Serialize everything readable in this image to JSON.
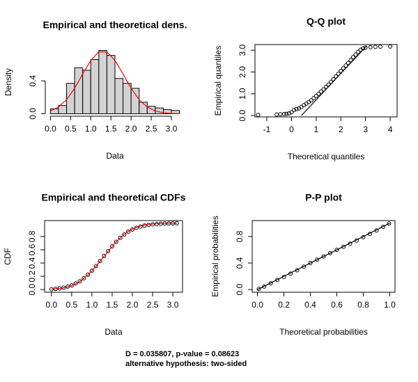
{
  "chart_data": [
    {
      "type": "histogram",
      "title": "Empirical and theoretical dens.",
      "xlabel": "Data",
      "ylabel": "Density",
      "bins": [
        0,
        0.2,
        0.4,
        0.6,
        0.8,
        1.0,
        1.2,
        1.4,
        1.6,
        1.8,
        2.0,
        2.2,
        2.4,
        2.6,
        2.8,
        3.0,
        3.2
      ],
      "values": [
        0.06,
        0.1,
        0.37,
        0.56,
        0.53,
        0.66,
        0.77,
        0.71,
        0.43,
        0.37,
        0.31,
        0.14,
        0.09,
        0.07,
        0.05,
        0.04
      ],
      "color": "#d3d3d3",
      "box": false,
      "xlim": [
        -0.128,
        3.328
      ],
      "ylim": [
        -0.03,
        0.8
      ],
      "xticks": [
        {
          "value": 0,
          "label": "0.0"
        },
        0.5,
        {
          "value": 1,
          "label": "1.0"
        },
        1.5,
        {
          "value": 2,
          "label": "2.0"
        },
        2.5,
        {
          "value": 3,
          "label": "3.0"
        }
      ],
      "yticks": [
        {
          "value": 0,
          "label": "0.0"
        },
        0.4
      ],
      "series": [
        {
          "style": "line",
          "color": "#ff0000",
          "x": [
            0,
            0.2,
            0.4,
            0.6,
            0.8,
            1.0,
            1.2,
            1.4,
            1.6,
            1.8,
            2.0,
            2.2,
            2.4,
            2.6,
            2.8,
            3.0,
            3.2
          ],
          "values": [
            0.034,
            0.082,
            0.171,
            0.31,
            0.483,
            0.649,
            0.753,
            0.753,
            0.649,
            0.483,
            0.31,
            0.171,
            0.082,
            0.034,
            0.012,
            0.004,
            0.001
          ]
        }
      ]
    },
    {
      "type": "scatter",
      "title": "Q-Q plot",
      "xlabel": "Theoretical quantiles",
      "ylabel": "Empirical quantiles",
      "box": true,
      "xlim": [
        -1.48,
        4.28
      ],
      "ylim": [
        -0.06,
        3.26
      ],
      "xticks": [
        -1,
        0,
        1,
        2,
        3,
        4
      ],
      "yticks": [
        {
          "value": 0,
          "label": "0.0"
        },
        {
          "value": 1,
          "label": "1.0"
        },
        {
          "value": 2,
          "label": "2.0"
        },
        {
          "value": 3,
          "label": "3.0"
        }
      ],
      "series": [
        {
          "style": "points",
          "color": "#000000",
          "x": [
            -1.35,
            -0.6,
            -0.45,
            -0.3,
            -0.2,
            -0.1,
            0.0,
            0.1,
            0.2,
            0.3,
            0.4,
            0.5,
            0.6,
            0.7,
            0.8,
            0.9,
            1.0,
            1.1,
            1.2,
            1.3,
            1.4,
            1.5,
            1.6,
            1.7,
            1.8,
            1.9,
            2.0,
            2.1,
            2.2,
            2.3,
            2.4,
            2.5,
            2.6,
            2.7,
            2.8,
            2.9,
            3.0,
            3.2,
            3.4,
            3.6,
            4.0
          ],
          "values": [
            0.03,
            0.05,
            0.06,
            0.07,
            0.08,
            0.1,
            0.15,
            0.25,
            0.3,
            0.33,
            0.4,
            0.48,
            0.55,
            0.62,
            0.7,
            0.8,
            0.9,
            1.0,
            1.1,
            1.2,
            1.32,
            1.42,
            1.55,
            1.67,
            1.8,
            1.92,
            2.05,
            2.17,
            2.3,
            2.42,
            2.55,
            2.68,
            2.8,
            2.92,
            3.02,
            3.08,
            3.12,
            3.14,
            3.15,
            3.16,
            3.17
          ]
        },
        {
          "style": "line",
          "color": "#000000",
          "x": [
            0.4,
            3.05
          ],
          "values": [
            0,
            3.2
          ]
        }
      ]
    },
    {
      "type": "scatter",
      "title": "Empirical and theoretical CDFs",
      "xlabel": "Data",
      "ylabel": "CDF",
      "box": true,
      "xlim": [
        -0.17,
        3.24
      ],
      "ylim": [
        -0.04,
        1.04
      ],
      "xticks": [
        {
          "value": 0,
          "label": "0.0"
        },
        0.5,
        {
          "value": 1,
          "label": "1.0"
        },
        1.5,
        {
          "value": 2,
          "label": "2.0"
        },
        2.5,
        {
          "value": 3,
          "label": "3.0"
        }
      ],
      "yticks": [
        {
          "value": 0,
          "label": "0.0"
        },
        0.2,
        0.4,
        0.6,
        0.8
      ],
      "series": [
        {
          "style": "points",
          "color": "#000000",
          "x": [
            0,
            0.1,
            0.2,
            0.3,
            0.4,
            0.5,
            0.6,
            0.7,
            0.8,
            0.9,
            1.0,
            1.1,
            1.2,
            1.3,
            1.4,
            1.5,
            1.6,
            1.7,
            1.8,
            1.9,
            2.0,
            2.1,
            2.2,
            2.3,
            2.4,
            2.5,
            2.6,
            2.7,
            2.8,
            2.9,
            3.0,
            3.1
          ],
          "values": [
            0.005,
            0.01,
            0.018,
            0.028,
            0.045,
            0.064,
            0.092,
            0.125,
            0.17,
            0.225,
            0.285,
            0.355,
            0.43,
            0.505,
            0.58,
            0.652,
            0.72,
            0.78,
            0.83,
            0.873,
            0.905,
            0.93,
            0.95,
            0.965,
            0.975,
            0.983,
            0.988,
            0.992,
            0.995,
            0.997,
            0.998,
            0.999
          ]
        },
        {
          "style": "line",
          "color": "#ff0000",
          "x": [
            0,
            0.1,
            0.2,
            0.3,
            0.4,
            0.5,
            0.6,
            0.7,
            0.8,
            0.9,
            1.0,
            1.1,
            1.2,
            1.3,
            1.4,
            1.5,
            1.6,
            1.7,
            1.8,
            1.9,
            2.0,
            2.1,
            2.2,
            2.3,
            2.4,
            2.5,
            2.6,
            2.7,
            2.8,
            2.9,
            3.0,
            3.1
          ],
          "values": [
            0.006,
            0.01,
            0.017,
            0.027,
            0.042,
            0.062,
            0.089,
            0.124,
            0.168,
            0.221,
            0.282,
            0.35,
            0.424,
            0.5,
            0.576,
            0.65,
            0.718,
            0.779,
            0.832,
            0.876,
            0.911,
            0.938,
            0.958,
            0.973,
            0.983,
            0.989,
            0.994,
            0.996,
            0.998,
            0.999,
            0.9995,
            0.9997
          ]
        }
      ]
    },
    {
      "type": "scatter",
      "title": "P-P plot",
      "xlabel": "Theoretical probabilities",
      "ylabel": "Empirical probabilities",
      "box": true,
      "xlim": [
        -0.04,
        1.04
      ],
      "ylim": [
        -0.04,
        1.04
      ],
      "xticks": [
        {
          "value": 0,
          "label": "0.0"
        },
        0.2,
        0.4,
        0.6,
        0.8,
        {
          "value": 1,
          "label": "1.0"
        }
      ],
      "yticks": [
        {
          "value": 0,
          "label": "0.0"
        },
        0.4,
        0.8
      ],
      "series": [
        {
          "style": "line",
          "color": "#000000",
          "x": [
            0,
            1
          ],
          "values": [
            0,
            1
          ]
        },
        {
          "style": "points",
          "color": "#000000",
          "x": [
            0.01,
            0.05,
            0.1,
            0.15,
            0.2,
            0.25,
            0.3,
            0.35,
            0.4,
            0.45,
            0.5,
            0.55,
            0.6,
            0.65,
            0.7,
            0.75,
            0.8,
            0.85,
            0.9,
            0.95,
            0.995
          ],
          "values": [
            0.01,
            0.045,
            0.095,
            0.145,
            0.19,
            0.24,
            0.29,
            0.345,
            0.4,
            0.45,
            0.5,
            0.55,
            0.6,
            0.645,
            0.69,
            0.74,
            0.79,
            0.84,
            0.89,
            0.945,
            0.995
          ]
        }
      ]
    }
  ],
  "footer": [
    "D = 0.035807, p-value = 0.08623",
    "alternative hypothesis: two-sided"
  ]
}
